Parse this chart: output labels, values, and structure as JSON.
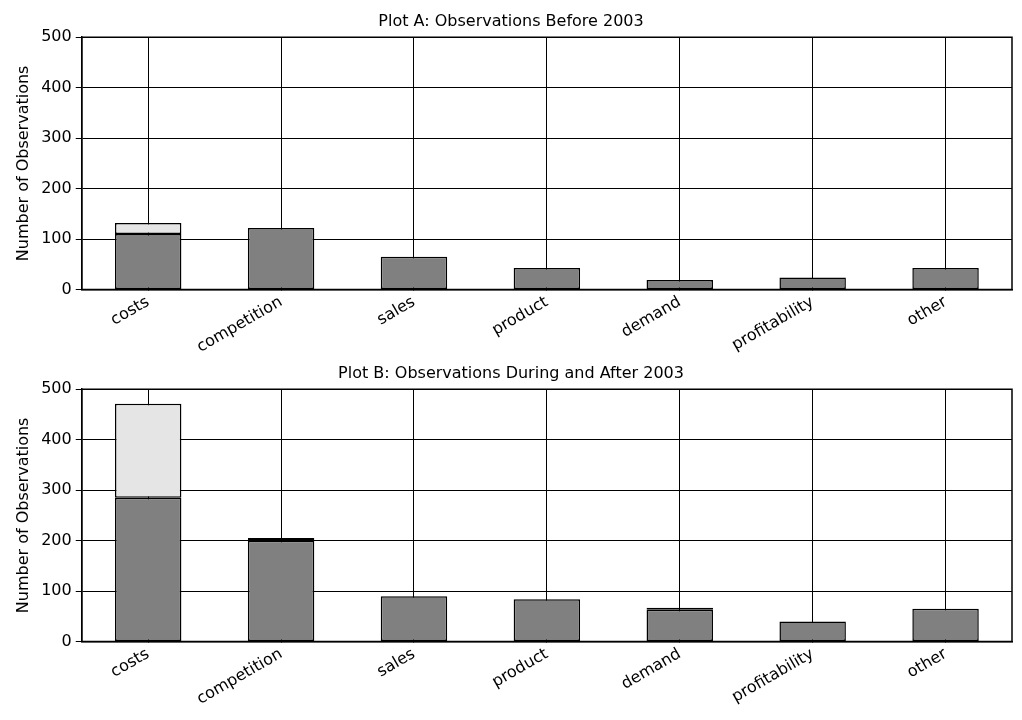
{
  "chart_data": [
    {
      "type": "bar",
      "title": "Plot A: Observations Before 2003",
      "ylabel": "Number of Observations",
      "categories": [
        "costs",
        "competition",
        "sales",
        "product",
        "demand",
        "profitability",
        "other"
      ],
      "stacked": true,
      "series": [
        {
          "color": "#808080",
          "values": [
            110,
            122,
            65,
            43,
            19,
            24,
            43
          ]
        },
        {
          "color": "#e5e5e5",
          "values": [
            22,
            0,
            0,
            0,
            0,
            0,
            0
          ]
        },
        {
          "color": "#000000",
          "values": [
            0,
            0,
            0,
            0,
            0,
            0,
            0
          ]
        }
      ],
      "ylim": [
        0,
        500
      ],
      "yticks": [
        0,
        100,
        200,
        300,
        400,
        500
      ],
      "grid": true,
      "legend": false
    },
    {
      "type": "bar",
      "title": "Plot B: Observations During and After 2003",
      "ylabel": "Number of Observations",
      "categories": [
        "costs",
        "competition",
        "sales",
        "product",
        "demand",
        "profitability",
        "other"
      ],
      "stacked": true,
      "series": [
        {
          "color": "#808080",
          "values": [
            285,
            200,
            90,
            84,
            63,
            40,
            65
          ]
        },
        {
          "color": "#e5e5e5",
          "values": [
            186,
            0,
            0,
            0,
            0,
            0,
            0
          ]
        },
        {
          "color": "#000000",
          "values": [
            0,
            5,
            0,
            0,
            4,
            0,
            0
          ]
        }
      ],
      "ylim": [
        0,
        500
      ],
      "yticks": [
        0,
        100,
        200,
        300,
        400,
        500
      ],
      "grid": true,
      "legend": false
    }
  ]
}
